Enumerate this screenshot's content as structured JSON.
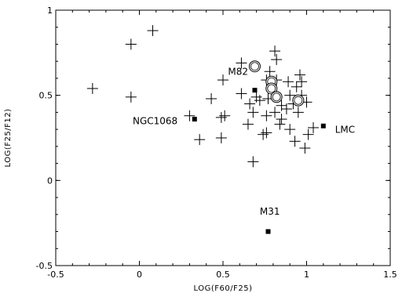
{
  "chart_data": {
    "type": "scatter",
    "xlabel": "LOG(F60/F25)",
    "ylabel": "LOG(F25/F12)",
    "xlim": [
      -0.5,
      1.5
    ],
    "ylim": [
      -0.5,
      1.0
    ],
    "x_ticks": [
      "-0.5",
      "0",
      "0.5",
      "1",
      "1.5"
    ],
    "y_ticks": [
      "-0.5",
      "0",
      "0.5",
      "1"
    ],
    "x_tick_values": [
      -0.5,
      0,
      0.5,
      1,
      1.5
    ],
    "y_tick_values": [
      -0.5,
      0,
      0.5,
      1
    ],
    "grid": false,
    "series": [
      {
        "marker": "plus",
        "points": [
          [
            -0.28,
            0.54
          ],
          [
            -0.05,
            0.8
          ],
          [
            0.08,
            0.88
          ],
          [
            -0.05,
            0.49
          ],
          [
            0.3,
            0.38
          ],
          [
            0.36,
            0.24
          ],
          [
            0.43,
            0.48
          ],
          [
            0.49,
            0.37
          ],
          [
            0.49,
            0.25
          ],
          [
            0.51,
            0.38
          ],
          [
            0.5,
            0.59
          ],
          [
            0.61,
            0.69
          ],
          [
            0.65,
            0.33
          ],
          [
            0.68,
            0.4
          ],
          [
            0.68,
            0.11
          ],
          [
            0.61,
            0.51
          ],
          [
            0.66,
            0.45
          ],
          [
            0.7,
            0.49
          ],
          [
            0.74,
            0.27
          ],
          [
            0.76,
            0.38
          ],
          [
            0.76,
            0.28
          ],
          [
            0.78,
            0.64
          ],
          [
            0.81,
            0.76
          ],
          [
            0.82,
            0.71
          ],
          [
            0.77,
            0.48
          ],
          [
            0.81,
            0.4
          ],
          [
            0.85,
            0.44
          ],
          [
            0.85,
            0.36
          ],
          [
            0.84,
            0.33
          ],
          [
            0.88,
            0.42
          ],
          [
            0.89,
            0.58
          ],
          [
            0.9,
            0.5
          ],
          [
            0.92,
            0.45
          ],
          [
            0.94,
            0.55
          ],
          [
            0.96,
            0.62
          ],
          [
            0.97,
            0.58
          ],
          [
            0.97,
            0.5
          ],
          [
            0.93,
            0.23
          ],
          [
            0.95,
            0.4
          ],
          [
            0.99,
            0.19
          ],
          [
            0.9,
            0.3
          ],
          [
            1.0,
            0.46
          ],
          [
            1.01,
            0.27
          ],
          [
            1.04,
            0.31
          ],
          [
            0.82,
            0.59
          ],
          [
            0.76,
            0.59
          ],
          [
            0.72,
            0.47
          ]
        ]
      },
      {
        "marker": "open-circle",
        "points": [
          [
            0.69,
            0.67
          ],
          [
            0.79,
            0.58
          ],
          [
            0.79,
            0.54
          ],
          [
            0.82,
            0.49
          ],
          [
            0.95,
            0.47
          ]
        ]
      },
      {
        "marker": "filled-square",
        "points": [
          [
            0.33,
            0.36
          ],
          [
            0.69,
            0.53
          ],
          [
            1.1,
            0.32
          ],
          [
            0.77,
            -0.3
          ]
        ]
      }
    ],
    "annotations": [
      {
        "text": "M82",
        "x": 0.53,
        "y": 0.62
      },
      {
        "text": "NGC1068",
        "x": -0.04,
        "y": 0.33
      },
      {
        "text": "LMC",
        "x": 1.17,
        "y": 0.28
      },
      {
        "text": "M31",
        "x": 0.72,
        "y": -0.2
      }
    ]
  }
}
